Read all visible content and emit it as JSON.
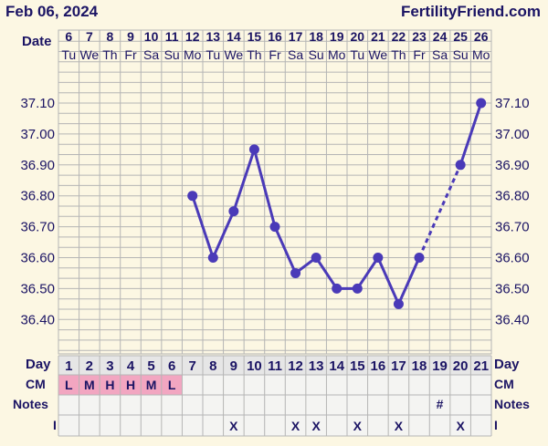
{
  "header": {
    "date": "Feb 06, 2024",
    "site": "FertilityFriend.com"
  },
  "colors": {
    "background": "#fcf7e3",
    "grid": "#b5b5b5",
    "line": "#4a3ab8",
    "text": "#1b1464",
    "cm_highlight": "#f2a6c1",
    "cm_text": "#1b1464"
  },
  "row_labels": {
    "date": "Date",
    "day": "Day",
    "cm": "CM",
    "notes": "Notes",
    "i": "I"
  },
  "chart_data": {
    "type": "line",
    "title": "",
    "xlabel": "Date",
    "ylabel": "",
    "ylim": [
      36.3,
      37.2
    ],
    "y_ticks": [
      "36.40",
      "36.50",
      "36.60",
      "36.70",
      "36.80",
      "36.90",
      "37.00",
      "37.10"
    ],
    "days": [
      1,
      2,
      3,
      4,
      5,
      6,
      7,
      8,
      9,
      10,
      11,
      12,
      13,
      14,
      15,
      16,
      17,
      18,
      19,
      20,
      21
    ],
    "dates": [
      "6",
      "7",
      "8",
      "9",
      "10",
      "11",
      "12",
      "13",
      "14",
      "15",
      "16",
      "17",
      "18",
      "19",
      "20",
      "21",
      "22",
      "23",
      "24",
      "25",
      "26"
    ],
    "weekdays": [
      "Tu",
      "We",
      "Th",
      "Fr",
      "Sa",
      "Su",
      "Mo",
      "Tu",
      "We",
      "Th",
      "Fr",
      "Sa",
      "Su",
      "Mo",
      "Tu",
      "We",
      "Th",
      "Fr",
      "Sa",
      "Su",
      "Mo"
    ],
    "series": [
      {
        "values": [
          null,
          null,
          null,
          null,
          null,
          null,
          36.8,
          36.6,
          36.75,
          36.95,
          36.7,
          36.55,
          36.6,
          36.5,
          36.5,
          36.6,
          36.45,
          36.6,
          null,
          36.9,
          37.1
        ],
        "dashed_gaps": [
          [
            18,
            20
          ]
        ]
      }
    ],
    "cm": [
      "L",
      "M",
      "H",
      "H",
      "M",
      "L",
      "",
      "",
      "",
      "",
      "",
      "",
      "",
      "",
      "",
      "",
      "",
      "",
      "",
      "",
      ""
    ],
    "notes": [
      "",
      "",
      "",
      "",
      "",
      "",
      "",
      "",
      "",
      "",
      "",
      "",
      "",
      "",
      "",
      "",
      "",
      "",
      "#",
      "",
      ""
    ],
    "intercourse": [
      "",
      "",
      "",
      "",
      "",
      "",
      "",
      "",
      "X",
      "",
      "",
      "X",
      "X",
      "",
      "X",
      "",
      "X",
      "",
      "",
      "X",
      ""
    ]
  }
}
